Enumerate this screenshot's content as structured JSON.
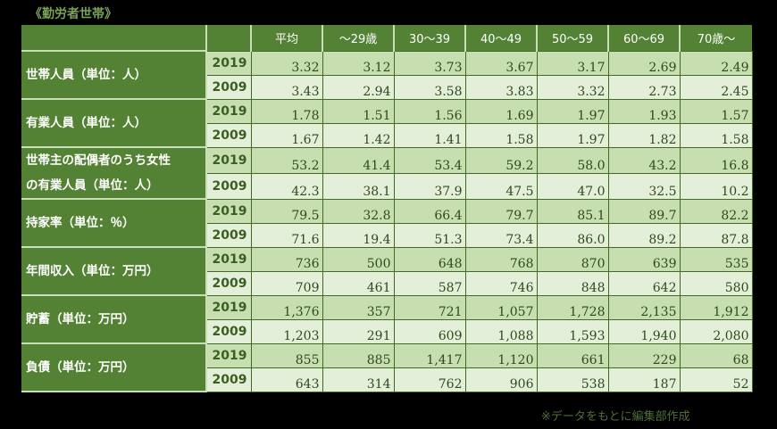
{
  "title": "《勤労者世帯》",
  "header": [
    "",
    "",
    "平均",
    "〜29歳",
    "30〜39",
    "40〜49",
    "50〜59",
    "60〜69",
    "70歳〜"
  ],
  "rows": [
    {
      "label": [
        "世帯人員（単位：人）"
      ],
      "data": [
        {
          "year": "2019",
          "values": [
            "3.32",
            "3.12",
            "3.73",
            "3.67",
            "3.17",
            "2.69",
            "2.49"
          ]
        },
        {
          "year": "2009",
          "values": [
            "3.43",
            "2.94",
            "3.58",
            "3.83",
            "3.32",
            "2.73",
            "2.45"
          ]
        }
      ]
    },
    {
      "label": [
        "有業人員（単位：人）"
      ],
      "data": [
        {
          "year": "2019",
          "values": [
            "1.78",
            "1.51",
            "1.56",
            "1.69",
            "1.97",
            "1.93",
            "1.57"
          ]
        },
        {
          "year": "2009",
          "values": [
            "1.67",
            "1.42",
            "1.41",
            "1.58",
            "1.97",
            "1.82",
            "1.58"
          ]
        }
      ]
    },
    {
      "label": [
        "世帯主の配偶者のうち女性",
        "の有業人員（単位：人）"
      ],
      "data": [
        {
          "year": "2019",
          "values": [
            "53.2",
            "41.4",
            "53.4",
            "59.2",
            "58.0",
            "43.2",
            "16.8"
          ]
        },
        {
          "year": "2009",
          "values": [
            "42.3",
            "38.1",
            "37.9",
            "47.5",
            "47.0",
            "32.5",
            "10.2"
          ]
        }
      ]
    },
    {
      "label": [
        "持家率（単位：％）"
      ],
      "data": [
        {
          "year": "2019",
          "values": [
            "79.5",
            "32.8",
            "66.4",
            "79.7",
            "85.1",
            "89.7",
            "82.2"
          ]
        },
        {
          "year": "2009",
          "values": [
            "71.6",
            "19.4",
            "51.3",
            "73.4",
            "86.0",
            "89.2",
            "87.8"
          ]
        }
      ]
    },
    {
      "label": [
        "年間収入（単位：万円）"
      ],
      "data": [
        {
          "year": "2019",
          "values": [
            "736",
            "500",
            "648",
            "768",
            "870",
            "639",
            "535"
          ]
        },
        {
          "year": "2009",
          "values": [
            "709",
            "461",
            "587",
            "746",
            "848",
            "642",
            "580"
          ]
        }
      ]
    },
    {
      "label": [
        "貯蓄（単位：万円）"
      ],
      "data": [
        {
          "year": "2019",
          "values": [
            "1,376",
            "357",
            "721",
            "1,057",
            "1,728",
            "2,135",
            "1,912"
          ]
        },
        {
          "year": "2009",
          "values": [
            "1,203",
            "291",
            "609",
            "1,088",
            "1,593",
            "1,940",
            "2,080"
          ]
        }
      ]
    },
    {
      "label": [
        "負債（単位：万円）"
      ],
      "data": [
        {
          "year": "2019",
          "values": [
            "855",
            "885",
            "1,417",
            "1,120",
            "661",
            "229",
            "68"
          ]
        },
        {
          "year": "2009",
          "values": [
            "643",
            "314",
            "762",
            "906",
            "538",
            "187",
            "52"
          ]
        }
      ]
    }
  ],
  "footnote": "※データをもとに編集部作成",
  "colors": {
    "header_bg": "#548235",
    "row2019_bg": "#c6deb0",
    "row2009_bg": "#e3efd8"
  }
}
